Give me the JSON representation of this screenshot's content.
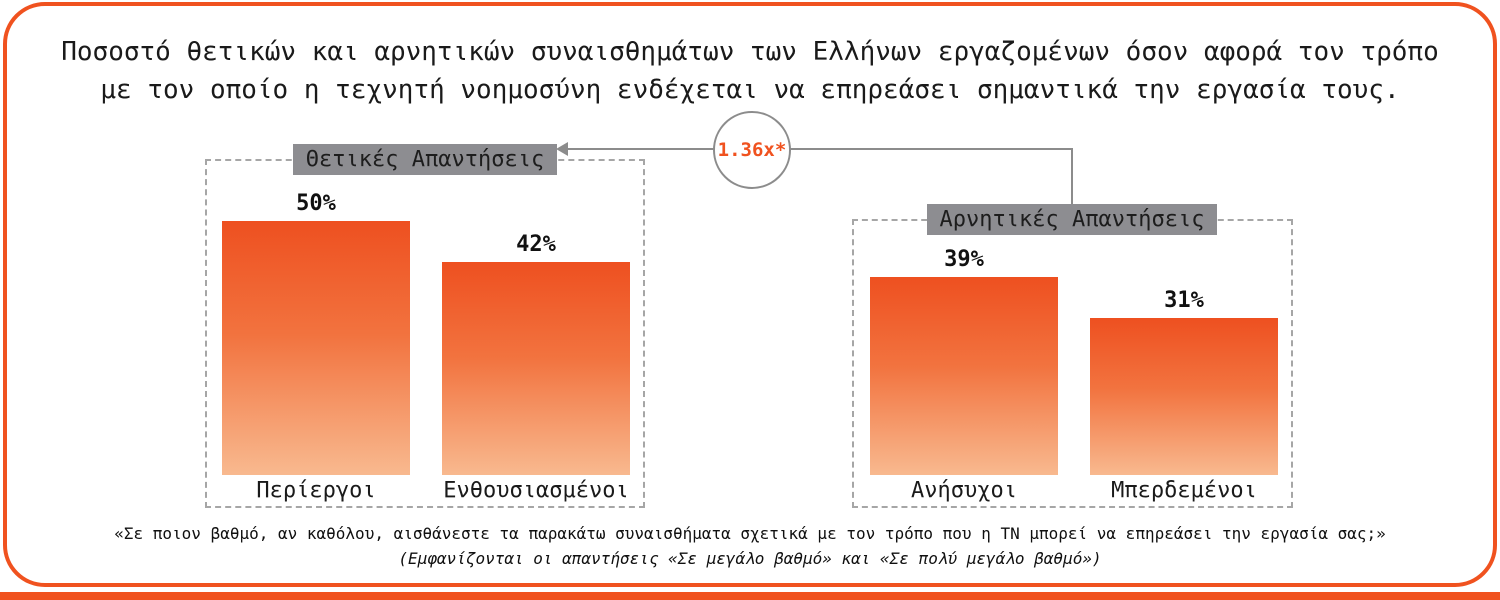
{
  "title": {
    "line1": "Ποσοστό θετικών και αρνητικών συναισθημάτων των Ελλήνων εργαζομένων όσον αφορά τον τρόπο",
    "line2": "με τον οποίο η τεχνητή νοημοσύνη ενδέχεται να επηρεάσει σημαντικά την εργασία τους."
  },
  "colors": {
    "accent": "#F0521F",
    "bar_top": "#EE5020",
    "bar_bottom": "#F8B98F",
    "label_box_bg": "#8D8D91",
    "connector": "#8C8C8C"
  },
  "chart_data": {
    "type": "bar",
    "unit": "%",
    "ylim": [
      0,
      50
    ],
    "grid": false,
    "legend": false,
    "groups": [
      {
        "label": "Θετικές Απαντήσεις",
        "categories": [
          "Περίεργοι",
          "Ενθουσιασμένοι"
        ],
        "values": [
          50,
          42
        ],
        "value_labels": [
          "50%",
          "42%"
        ]
      },
      {
        "label": "Αρνητικές Απαντήσεις",
        "categories": [
          "Ανήσυχοι",
          "Μπερδεμένοι"
        ],
        "values": [
          39,
          31
        ],
        "value_labels": [
          "39%",
          "31%"
        ]
      }
    ],
    "ratio_annotation": "1.36x*"
  },
  "footer": {
    "question": "«Σε ποιον βαθμό, αν καθόλου, αισθάνεστε τα παρακάτω συναισθήματα σχετικά με τον τρόπο που η ΤΝ μπορεί να επηρεάσει την εργασία σας;»",
    "note": "(Εμφανίζονται οι απαντήσεις «Σε μεγάλο βαθμό» και «Σε πολύ μεγάλο βαθμό»)"
  }
}
